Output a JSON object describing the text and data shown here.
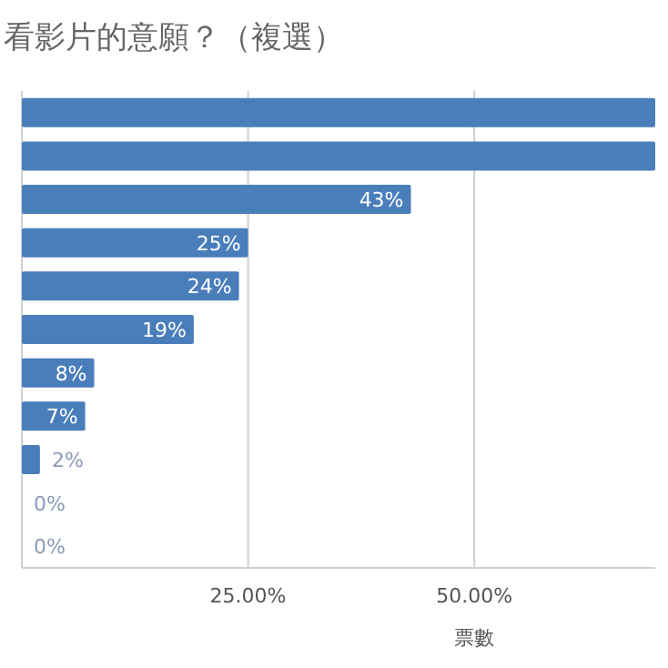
{
  "chart_data": {
    "type": "bar",
    "orientation": "horizontal",
    "title": "看影片的意願？（複選）",
    "xlabel": "票數",
    "categories": [
      null,
      null,
      null,
      null,
      null,
      null,
      null,
      null,
      null,
      null,
      null
    ],
    "values": [
      70,
      70,
      43,
      25,
      24,
      19,
      8,
      7,
      2,
      0,
      0
    ],
    "value_labels": [
      null,
      null,
      "43%",
      "25%",
      "24%",
      "19%",
      "8%",
      "7%",
      "2%",
      "0%",
      "0%"
    ],
    "color": "#4a7ebb",
    "xlim": [
      0,
      70
    ],
    "xticks": [
      {
        "value": 25,
        "label": "25.00%"
      },
      {
        "value": 50,
        "label": "50.00%"
      }
    ],
    "grid": "x"
  }
}
